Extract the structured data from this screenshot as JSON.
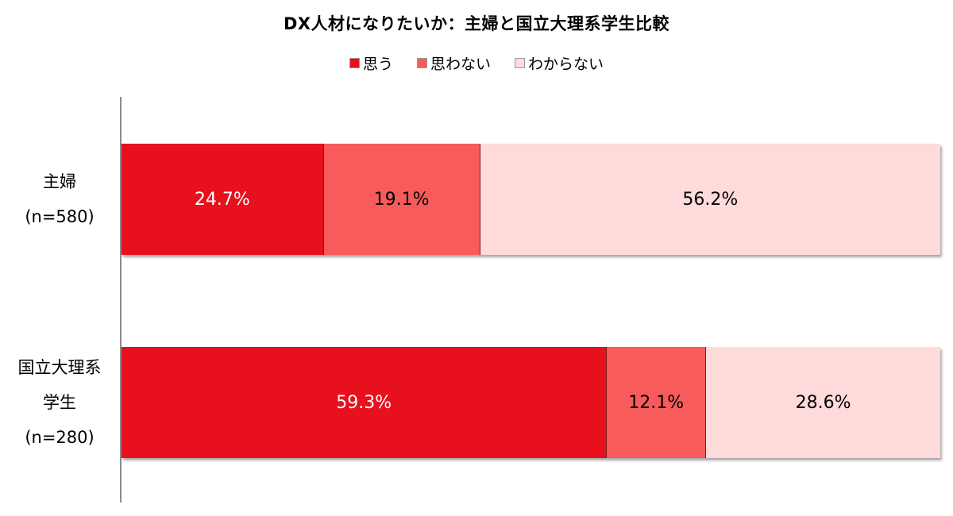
{
  "chart_data": {
    "type": "bar",
    "orientation": "horizontal-stacked-100",
    "title": "DX人材になりたいか：主婦と国立大理系学生比較",
    "legend_position": "top",
    "categories": [
      {
        "lines": [
          "主婦",
          "(n=580)"
        ]
      },
      {
        "lines": [
          "国立大理系",
          "学生",
          "(n=280)"
        ]
      }
    ],
    "series": [
      {
        "name": "思う",
        "color": "#e8101c",
        "label_color": "#ffffff",
        "values": [
          24.7,
          59.3
        ],
        "labels": [
          "24.7%",
          "59.3%"
        ]
      },
      {
        "name": "思わない",
        "color": "#f75b5b",
        "label_color": "#000000",
        "values": [
          19.1,
          12.1
        ],
        "labels": [
          "19.1%",
          "12.1%"
        ]
      },
      {
        "name": "わからない",
        "color": "#fedada",
        "label_color": "#000000",
        "values": [
          56.2,
          28.6
        ],
        "labels": [
          "56.2%",
          "28.6%"
        ]
      }
    ],
    "xlim": [
      0,
      100
    ],
    "grid": false
  }
}
